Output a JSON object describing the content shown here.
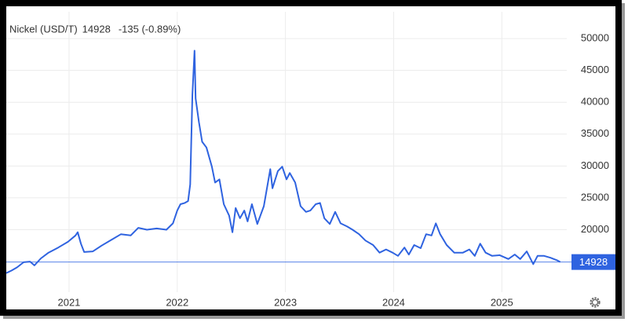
{
  "chart_data": {
    "type": "line",
    "title": "Nickel (USD/T)",
    "last_value": 14928,
    "change": "-135 (-0.89%)",
    "color": "#2f63e0",
    "change_color": "#e0403a",
    "grid": true,
    "x": [
      2020.42,
      2020.47,
      2020.52,
      2020.58,
      2020.64,
      2020.68,
      2020.74,
      2020.81,
      2020.9,
      2020.99,
      2021.06,
      2021.08,
      2021.11,
      2021.14,
      2021.22,
      2021.3,
      2021.39,
      2021.48,
      2021.57,
      2021.64,
      2021.72,
      2021.81,
      2021.9,
      2021.96,
      2022.0,
      2022.03,
      2022.07,
      2022.1,
      2022.12,
      2022.14,
      2022.16,
      2022.17,
      2022.2,
      2022.23,
      2022.27,
      2022.32,
      2022.35,
      2022.39,
      2022.43,
      2022.48,
      2022.51,
      2022.54,
      2022.58,
      2022.62,
      2022.65,
      2022.69,
      2022.74,
      2022.8,
      2022.86,
      2022.88,
      2022.93,
      2022.97,
      2023.01,
      2023.04,
      2023.09,
      2023.14,
      2023.19,
      2023.23,
      2023.28,
      2023.32,
      2023.36,
      2023.41,
      2023.46,
      2023.51,
      2023.57,
      2023.62,
      2023.68,
      2023.74,
      2023.81,
      2023.87,
      2023.93,
      2023.99,
      2024.04,
      2024.1,
      2024.14,
      2024.19,
      2024.25,
      2024.3,
      2024.35,
      2024.39,
      2024.43,
      2024.49,
      2024.56,
      2024.64,
      2024.7,
      2024.75,
      2024.8,
      2024.85,
      2024.91,
      2024.98,
      2025.06,
      2025.12,
      2025.17,
      2025.23,
      2025.29,
      2025.33,
      2025.39,
      2025.45,
      2025.51,
      2025.54
    ],
    "values": [
      13200,
      13600,
      14100,
      14900,
      15000,
      14400,
      15500,
      16400,
      17200,
      18100,
      19100,
      19600,
      17800,
      16500,
      16600,
      17500,
      18400,
      19300,
      19100,
      20300,
      20000,
      20200,
      20000,
      21000,
      23000,
      24000,
      24200,
      24500,
      27100,
      41200,
      48100,
      40600,
      36900,
      33800,
      32900,
      29900,
      27400,
      27900,
      24000,
      22200,
      19600,
      23400,
      21800,
      23000,
      21300,
      24000,
      20900,
      23700,
      29500,
      26500,
      29200,
      29900,
      27900,
      28900,
      27400,
      23700,
      22800,
      23000,
      24000,
      24200,
      21800,
      20900,
      22800,
      21000,
      20500,
      20000,
      19300,
      18300,
      17600,
      16400,
      16900,
      16400,
      15900,
      17200,
      16100,
      17600,
      17100,
      19300,
      19100,
      21000,
      19300,
      17600,
      16400,
      16400,
      16900,
      15900,
      17800,
      16400,
      15900,
      16000,
      15400,
      16100,
      15400,
      16600,
      14600,
      15900,
      15900,
      15600,
      15200,
      14928
    ],
    "xlim": [
      2020.42,
      2025.6
    ],
    "xticks": [
      2021,
      2022,
      2023,
      2024,
      2025
    ],
    "ylim": [
      10200,
      54200
    ],
    "yticks": [
      20000,
      25000,
      30000,
      35000,
      40000,
      45000,
      50000
    ]
  }
}
